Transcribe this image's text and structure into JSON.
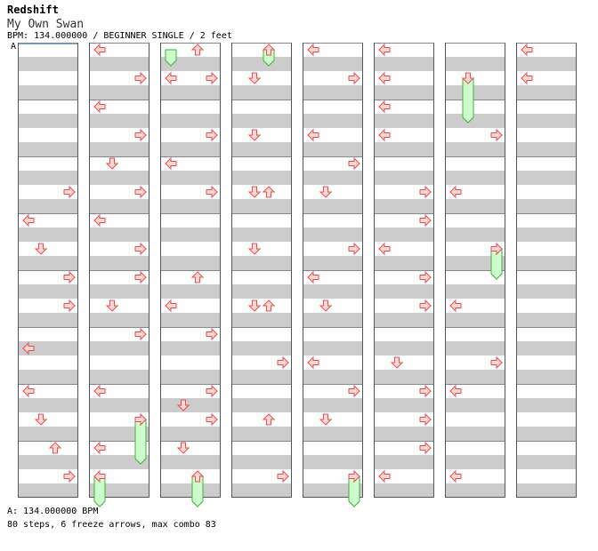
{
  "header": {
    "artist": "Redshift",
    "title": "My Own Swan",
    "meta": "BPM: 134.000000 / BEGINNER SINGLE / 2 feet",
    "bpm_marker": "A"
  },
  "footer": {
    "bpm": "A: 134.000000 BPM",
    "stats": "80 steps, 6 freeze arrows, max combo 83"
  },
  "chart": {
    "columns": 8,
    "rows_per_column": 32,
    "lanes": [
      "left",
      "down",
      "up",
      "right"
    ],
    "colors": {
      "arrow_fill": "#ffd6d6",
      "arrow_stroke": "#e05050",
      "freeze_fill": "#ccffcc",
      "freeze_stroke": "#40b040",
      "stripe": "#cccccc"
    },
    "notes": [
      [
        [
          10,
          3
        ],
        [
          12,
          0
        ],
        [
          14,
          1
        ],
        [
          16,
          3
        ],
        [
          18,
          3
        ],
        [
          21,
          0
        ],
        [
          24,
          0
        ],
        [
          26,
          1
        ],
        [
          28,
          2
        ],
        [
          30,
          3
        ]
      ],
      [
        [
          0,
          0
        ],
        [
          2,
          3
        ],
        [
          4,
          0
        ],
        [
          6,
          3
        ],
        [
          8,
          1
        ],
        [
          10,
          3
        ],
        [
          12,
          0
        ],
        [
          14,
          3
        ],
        [
          16,
          3
        ],
        [
          18,
          1
        ],
        [
          20,
          3
        ],
        [
          24,
          0
        ],
        [
          26,
          3
        ],
        [
          28,
          0
        ],
        [
          30,
          0
        ]
      ],
      [
        [
          0,
          2
        ],
        [
          2,
          0
        ],
        [
          2,
          3
        ],
        [
          6,
          3
        ],
        [
          8,
          0
        ],
        [
          10,
          3
        ],
        [
          16,
          2
        ],
        [
          18,
          0
        ],
        [
          20,
          3
        ],
        [
          24,
          3
        ],
        [
          25,
          1
        ],
        [
          26,
          3
        ],
        [
          28,
          1
        ],
        [
          30,
          2
        ]
      ],
      [
        [
          0,
          2
        ],
        [
          2,
          1
        ],
        [
          6,
          1
        ],
        [
          10,
          1
        ],
        [
          10,
          2
        ],
        [
          14,
          1
        ],
        [
          18,
          1
        ],
        [
          18,
          2
        ],
        [
          22,
          3
        ],
        [
          26,
          2
        ],
        [
          30,
          3
        ]
      ],
      [
        [
          0,
          0
        ],
        [
          2,
          3
        ],
        [
          6,
          0
        ],
        [
          8,
          3
        ],
        [
          10,
          1
        ],
        [
          14,
          3
        ],
        [
          16,
          0
        ],
        [
          18,
          1
        ],
        [
          22,
          0
        ],
        [
          24,
          3
        ],
        [
          26,
          1
        ],
        [
          30,
          3
        ]
      ],
      [
        [
          0,
          0
        ],
        [
          2,
          0
        ],
        [
          4,
          0
        ],
        [
          6,
          0
        ],
        [
          10,
          3
        ],
        [
          12,
          3
        ],
        [
          14,
          0
        ],
        [
          16,
          3
        ],
        [
          18,
          3
        ],
        [
          22,
          1
        ],
        [
          24,
          3
        ],
        [
          26,
          3
        ],
        [
          28,
          3
        ],
        [
          30,
          0
        ]
      ],
      [
        [
          2,
          1
        ],
        [
          6,
          3
        ],
        [
          10,
          0
        ],
        [
          14,
          3
        ],
        [
          18,
          0
        ],
        [
          22,
          3
        ],
        [
          24,
          0
        ],
        [
          30,
          0
        ]
      ],
      [
        [
          0,
          0
        ],
        [
          2,
          0
        ]
      ]
    ],
    "freezes": [
      [
        1,
        26,
        29,
        3
      ],
      [
        1,
        30,
        32,
        0
      ],
      [
        2,
        30,
        32,
        2
      ],
      [
        2,
        0,
        1,
        0
      ],
      [
        3,
        0,
        1,
        2
      ],
      [
        4,
        30,
        32,
        3
      ],
      [
        6,
        2,
        5,
        1
      ],
      [
        6,
        14,
        16,
        3
      ]
    ]
  }
}
